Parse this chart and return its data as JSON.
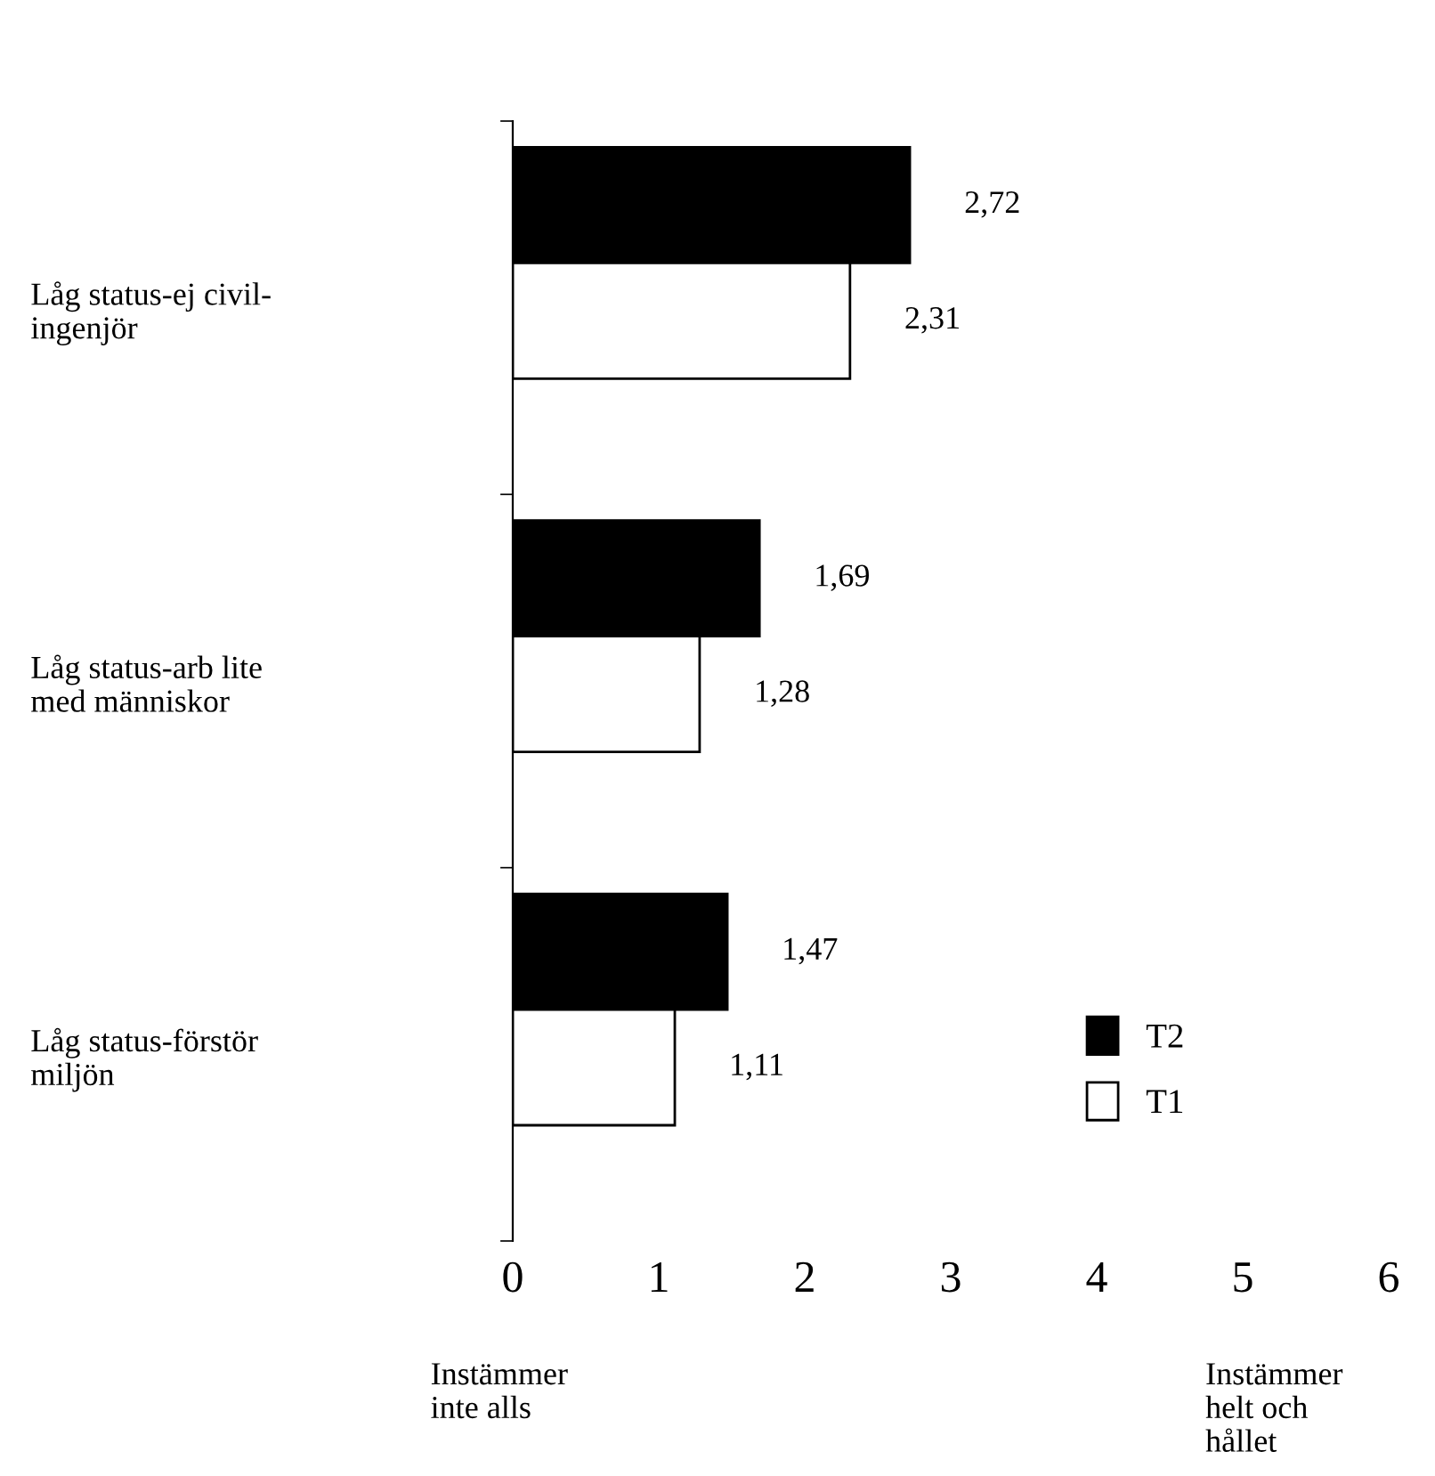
{
  "chart_data": {
    "type": "bar",
    "orientation": "horizontal",
    "categories": [
      "Låg status-ej civil-\ningenjör",
      "Låg status-arb lite\nmed människor",
      "Låg status-förstör\nmiljön"
    ],
    "series": [
      {
        "name": "T2",
        "color": "#000000",
        "values": [
          2.72,
          1.69,
          1.47
        ],
        "value_labels": [
          "2,72",
          "1,69",
          "1,47"
        ]
      },
      {
        "name": "T1",
        "color": "#ffffff",
        "values": [
          2.31,
          1.28,
          1.11
        ],
        "value_labels": [
          "2,31",
          "1,28",
          "1,11"
        ]
      }
    ],
    "xlim": [
      0,
      6
    ],
    "xticks": [
      0,
      1,
      2,
      3,
      4,
      5,
      6
    ],
    "grid": false,
    "legend": "right",
    "annotations": [
      "Instämmer\ninte alls",
      "Instämmer\nhelt och\nhållet"
    ]
  }
}
